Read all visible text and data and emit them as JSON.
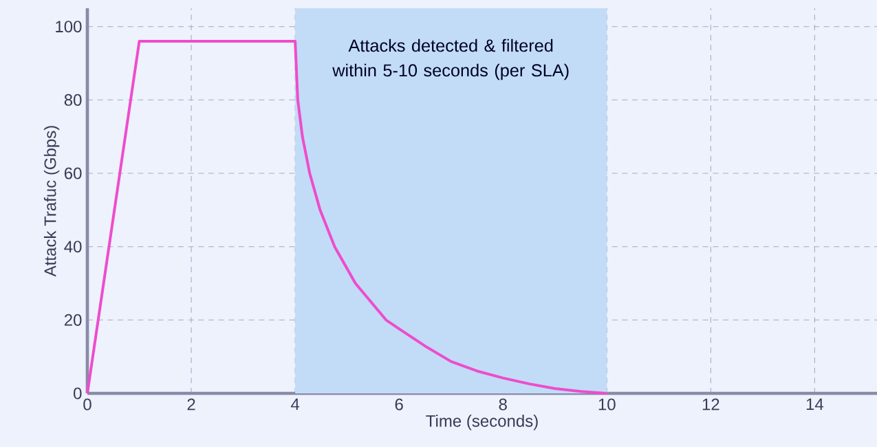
{
  "chart_data": {
    "type": "line",
    "xlabel": "Time (seconds)",
    "ylabel": "Attack Trafuc (Gbps)",
    "x": [
      0,
      1,
      4,
      4.05,
      4.14,
      4.28,
      4.48,
      4.76,
      5.16,
      5.75,
      6,
      6.5,
      7,
      7.5,
      8,
      8.5,
      9,
      9.5,
      10
    ],
    "series": [
      {
        "color": "#ee4dcc",
        "values": [
          0,
          96,
          96,
          80,
          70,
          60,
          50,
          40,
          30,
          20,
          17.6,
          12.9,
          8.7,
          6.1,
          4.2,
          2.6,
          1.3,
          0.5,
          0
        ]
      }
    ],
    "xlim": [
      0,
      15.2
    ],
    "ylim": [
      0,
      105
    ],
    "xticks": [
      0,
      2,
      4,
      6,
      8,
      10,
      12,
      14
    ],
    "yticks": [
      0,
      20,
      40,
      60,
      80,
      100
    ],
    "grid": true,
    "line_style": "solid",
    "marker": "none",
    "bands": [
      {
        "axis": "x",
        "from": 4,
        "to": 10,
        "label": "Attacks detected & filtered within 5-10 seconds (per SLA)",
        "color": "#c2dcf8"
      }
    ]
  }
}
